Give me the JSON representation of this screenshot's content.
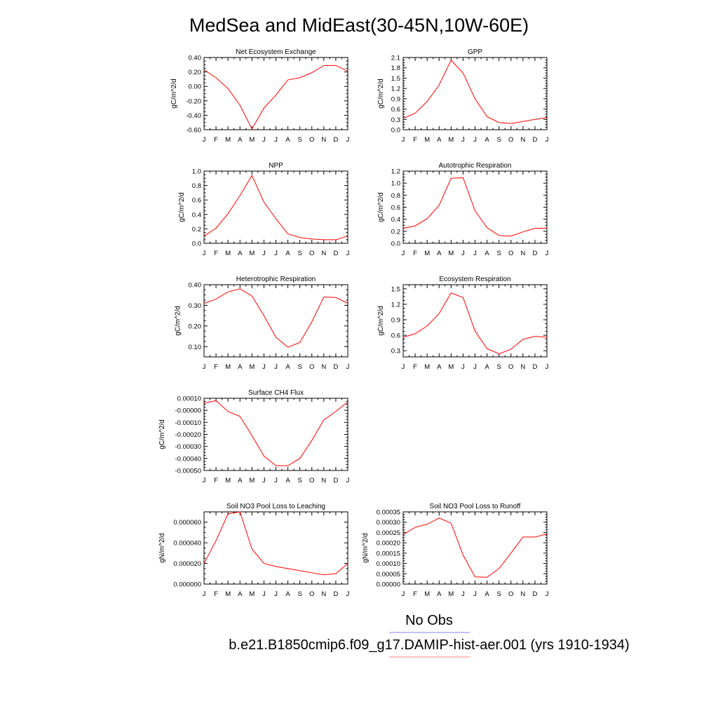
{
  "figure": {
    "title": "MedSea and MidEast(30-45N,10W-60E)",
    "legend": [
      {
        "label": "No Obs",
        "color": "#8080ff"
      },
      {
        "label": "b.e21.B1850cmip6.f09_g17.DAMIP-hist-aer.001 (yrs 1910-1934)",
        "color": "#ff8080"
      }
    ],
    "line_color": "#ff0000"
  },
  "chart_data": [
    {
      "type": "line",
      "title": "Net Ecosystem Exchange",
      "ylabel": "gC/m^2/d",
      "categories": [
        "J",
        "F",
        "M",
        "A",
        "M",
        "J",
        "J",
        "A",
        "S",
        "O",
        "N",
        "D",
        "J"
      ],
      "ylim": [
        -0.6,
        0.4
      ],
      "yticks": [
        -0.6,
        -0.4,
        -0.2,
        0.0,
        0.2,
        0.4
      ],
      "yticklabels": [
        "-0.60",
        "-0.40",
        "-0.20",
        "0.00",
        "0.20",
        "0.40"
      ],
      "values": [
        0.23,
        0.12,
        -0.03,
        -0.26,
        -0.59,
        -0.3,
        -0.12,
        0.09,
        0.12,
        0.19,
        0.29,
        0.29,
        0.21
      ]
    },
    {
      "type": "line",
      "title": "GPP",
      "ylabel": "gC/m^2/d",
      "categories": [
        "J",
        "F",
        "M",
        "A",
        "M",
        "J",
        "J",
        "A",
        "S",
        "O",
        "N",
        "D",
        "J"
      ],
      "ylim": [
        0.0,
        2.1
      ],
      "yticks": [
        0.0,
        0.3,
        0.6,
        0.9,
        1.2,
        1.5,
        1.8,
        2.1
      ],
      "yticklabels": [
        "0.0",
        "0.3",
        "0.6",
        "0.9",
        "1.2",
        "1.5",
        "1.8",
        "2.1"
      ],
      "values": [
        0.33,
        0.48,
        0.82,
        1.3,
        2.02,
        1.65,
        0.9,
        0.38,
        0.21,
        0.18,
        0.24,
        0.3,
        0.35
      ]
    },
    {
      "type": "line",
      "title": "NPP",
      "ylabel": "gC/m^2/d",
      "categories": [
        "J",
        "F",
        "M",
        "A",
        "M",
        "J",
        "J",
        "A",
        "S",
        "O",
        "N",
        "D",
        "J"
      ],
      "ylim": [
        0.0,
        1.0
      ],
      "yticks": [
        0.0,
        0.2,
        0.4,
        0.6,
        0.8,
        1.0
      ],
      "yticklabels": [
        "0.0",
        "0.2",
        "0.4",
        "0.6",
        "0.8",
        "1.0"
      ],
      "values": [
        0.1,
        0.21,
        0.41,
        0.66,
        0.94,
        0.57,
        0.34,
        0.13,
        0.08,
        0.06,
        0.05,
        0.05,
        0.1
      ]
    },
    {
      "type": "line",
      "title": "Autotrophic Respiration",
      "ylabel": "gC/m^2/d",
      "categories": [
        "J",
        "F",
        "M",
        "A",
        "M",
        "J",
        "J",
        "A",
        "S",
        "O",
        "N",
        "D",
        "J"
      ],
      "ylim": [
        0.0,
        1.2
      ],
      "yticks": [
        0.0,
        0.2,
        0.4,
        0.6,
        0.8,
        1.0,
        1.2
      ],
      "yticklabels": [
        "0.0",
        "0.2",
        "0.4",
        "0.6",
        "0.8",
        "1.0",
        "1.2"
      ],
      "values": [
        0.25,
        0.29,
        0.41,
        0.63,
        1.08,
        1.09,
        0.54,
        0.26,
        0.13,
        0.12,
        0.19,
        0.25,
        0.25
      ]
    },
    {
      "type": "line",
      "title": "Heterotrophic Respiration",
      "ylabel": "gC/m^2/d",
      "categories": [
        "J",
        "F",
        "M",
        "A",
        "M",
        "J",
        "J",
        "A",
        "S",
        "O",
        "N",
        "D",
        "J"
      ],
      "ylim": [
        0.05,
        0.4
      ],
      "yticks": [
        0.1,
        0.2,
        0.3,
        0.4
      ],
      "yticklabels": [
        "0.10",
        "0.20",
        "0.30",
        "0.40"
      ],
      "values": [
        0.31,
        0.33,
        0.365,
        0.38,
        0.345,
        0.25,
        0.145,
        0.097,
        0.12,
        0.22,
        0.34,
        0.338,
        0.31
      ]
    },
    {
      "type": "line",
      "title": "Ecosystem Respiration",
      "ylabel": "gC/m^2/d",
      "categories": [
        "J",
        "F",
        "M",
        "A",
        "M",
        "J",
        "J",
        "A",
        "S",
        "O",
        "N",
        "D",
        "J"
      ],
      "ylim": [
        0.18,
        1.58
      ],
      "yticks": [
        0.3,
        0.6,
        0.9,
        1.2,
        1.5
      ],
      "yticklabels": [
        "0.3",
        "0.6",
        "0.9",
        "1.2",
        "1.5"
      ],
      "values": [
        0.56,
        0.63,
        0.78,
        1.02,
        1.42,
        1.33,
        0.68,
        0.34,
        0.24,
        0.33,
        0.52,
        0.58,
        0.56
      ]
    },
    {
      "type": "line",
      "title": "Surface CH4 Flux",
      "ylabel": "gC/m^2/d",
      "categories": [
        "J",
        "F",
        "M",
        "A",
        "M",
        "J",
        "J",
        "A",
        "S",
        "O",
        "N",
        "D",
        "J"
      ],
      "ylim": [
        -0.0005,
        0.0001
      ],
      "yticks": [
        -0.0005,
        -0.0004,
        -0.0003,
        -0.0002,
        -0.0001,
        0.0,
        0.0001
      ],
      "yticklabels": [
        "-0.00050",
        "-0.00040",
        "-0.00030",
        "-0.00020",
        "-0.00010",
        "-0.00000",
        "0.00010"
      ],
      "values": [
        6e-05,
        8e-05,
        -1e-05,
        -5e-05,
        -0.00021,
        -0.00038,
        -0.00046,
        -0.00046,
        -0.0004,
        -0.00025,
        -8e-05,
        -1e-05,
        7e-05
      ]
    },
    {
      "type": "line",
      "title": "Soil NO3 Pool Loss to Leaching",
      "ylabel": "gN/m^2/d",
      "categories": [
        "J",
        "F",
        "M",
        "A",
        "M",
        "J",
        "J",
        "A",
        "S",
        "O",
        "N",
        "D",
        "J"
      ],
      "ylim": [
        0.0,
        7e-05
      ],
      "yticks": [
        0.0,
        2e-05,
        4e-05,
        6e-05
      ],
      "yticklabels": [
        "0.000000",
        "0.000020",
        "0.000040",
        "0.000060"
      ],
      "values": [
        2e-05,
        4.2e-05,
        6.8e-05,
        7e-05,
        3.4e-05,
        2e-05,
        1.7e-05,
        1.5e-05,
        1.3e-05,
        1.1e-05,
        9e-06,
        1e-05,
        2e-05
      ]
    },
    {
      "type": "line",
      "title": "Soil NO3 Pool Loss to Runoff",
      "ylabel": "gN/m^2/d",
      "categories": [
        "J",
        "F",
        "M",
        "A",
        "M",
        "J",
        "J",
        "A",
        "S",
        "O",
        "N",
        "D",
        "J"
      ],
      "ylim": [
        0.0,
        0.00035
      ],
      "yticks": [
        0.0,
        5e-05,
        0.0001,
        0.00015,
        0.0002,
        0.00025,
        0.0003,
        0.00035
      ],
      "yticklabels": [
        "0.00000",
        "0.00005",
        "0.00010",
        "0.00015",
        "0.00020",
        "0.00025",
        "0.00030",
        "0.00035"
      ],
      "values": [
        0.00024,
        0.000275,
        0.00029,
        0.00032,
        0.000295,
        0.00014,
        3.5e-05,
        3.3e-05,
        7.5e-05,
        0.00015,
        0.000228,
        0.000228,
        0.000243
      ]
    }
  ]
}
